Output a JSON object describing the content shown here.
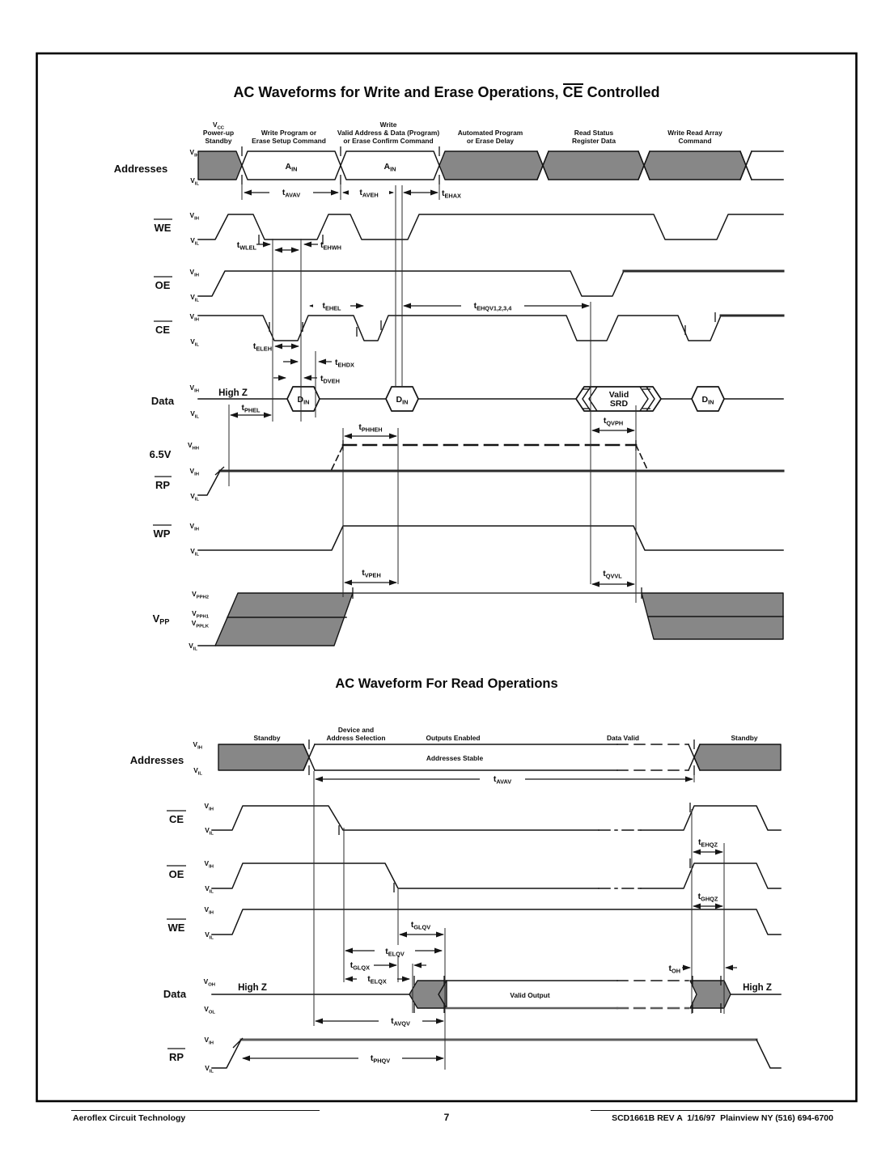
{
  "colors": {
    "bus_fill": "#878787",
    "line": "#141414",
    "background": "#ffffff"
  },
  "footer": {
    "left": "Aeroflex Circuit Technology",
    "page_number": "7",
    "right": "SCD1661B REV A  1/16/97  Plainview NY (516) 694-6700"
  },
  "d1": {
    "title_pre": "AC Waveforms for Write and Erase Operations, ",
    "title_ce": "CE",
    "title_post": " Controlled",
    "phases": {
      "p1l1": "V|CC",
      "p1l2": "Power-up",
      "p1l3": "Standby",
      "p2l1": "Write Program or",
      "p2l2": "Erase Setup Command",
      "p3l1": "Write",
      "p3l2": "Valid Address & Data (Program)",
      "p3l3": "or Erase Confirm Command",
      "p4l1": "Automated Program",
      "p4l2": "or Erase Delay",
      "p5l1": "Read Status",
      "p5l2": "Register Data",
      "p6l1": "Write Read Array",
      "p6l2": "Command"
    },
    "rows": {
      "addresses": "Addresses",
      "we": "WE",
      "oe": "OE",
      "ce": "CE",
      "data": "Data",
      "v65": "6.5V",
      "rp": "RP",
      "wp": "WP",
      "vpp": "V|PP"
    },
    "levels": {
      "vih": "V|IH",
      "vil": "V|IL",
      "vhh": "V|HH",
      "vpph2": "V|PPH2",
      "vpph1": "V|PPH1",
      "vpplk": "V|PPLK"
    },
    "timings": {
      "tavav": "t|AVAV",
      "taveh": "t|AVEH",
      "tehax": "t|EHAX",
      "twlel": "t|WLEL",
      "tehwh": "t|EHWH",
      "tehel": "t|EHEL",
      "tehqv": "t|EHQV1,2,3,4",
      "teleh": "t|ELEH",
      "tehdx": "t|EHDX",
      "tdveh": "t|DVEH",
      "tphel": "t|PHEL",
      "tphheh": "t|PHHEH",
      "tqvph": "t|QVPH",
      "tvpeh": "t|VPEH",
      "tqvvl": "t|QVVL"
    },
    "content": {
      "highz": "High Z",
      "ain": "A|IN",
      "din": "D|IN",
      "valid": "Valid",
      "srd": "SRD"
    }
  },
  "d2": {
    "title": "AC Waveform For Read Operations",
    "phases": {
      "standby1": "Standby",
      "devl1": "Device and",
      "devl2": "Address Selection",
      "outputs": "Outputs Enabled",
      "datavalid": "Data Valid",
      "standby2": "Standby"
    },
    "rows": {
      "addresses": "Addresses",
      "ce": "CE",
      "oe": "OE",
      "we": "WE",
      "data": "Data",
      "rp": "RP"
    },
    "levels": {
      "vih": "V|IH",
      "vil": "V|IL",
      "voh": "V|OH",
      "vol": "V|OL"
    },
    "timings": {
      "tavav": "t|AVAV",
      "tehqz": "t|EHQZ",
      "tghqz": "t|GHQZ",
      "tglqv": "t|GLQV",
      "telqv": "t|ELQV",
      "tglqx": "t|GLQX",
      "telqx": "t|ELQX",
      "toh": "t|OH",
      "tavqv": "t|AVQV",
      "tphqv": "t|PHQV"
    },
    "content": {
      "highz": "High Z",
      "addr_stable": "Addresses Stable",
      "valid_output": "Valid Output"
    }
  }
}
